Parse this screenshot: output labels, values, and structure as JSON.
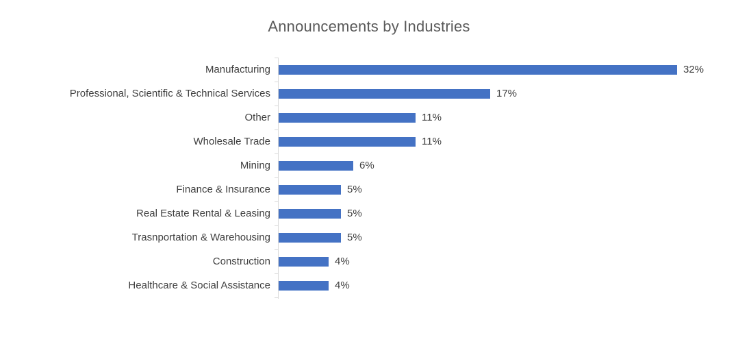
{
  "chart": {
    "title": "Announcements by Industries",
    "accent_color": "#4472C4",
    "axis_color": "#D9D9D9",
    "label_color": "#404040",
    "title_color": "#595959"
  },
  "chart_data": {
    "type": "bar",
    "orientation": "horizontal",
    "title": "Announcements by Industries",
    "categories": [
      "Manufacturing",
      "Professional, Scientific & Technical Services",
      "Other",
      "Wholesale Trade",
      "Mining",
      "Finance & Insurance",
      "Real Estate Rental & Leasing",
      "Trasnportation & Warehousing",
      "Construction",
      "Healthcare & Social Assistance"
    ],
    "values": [
      32,
      17,
      11,
      11,
      6,
      5,
      5,
      5,
      4,
      4
    ],
    "value_labels": [
      "32%",
      "17%",
      "11%",
      "11%",
      "6%",
      "5%",
      "5%",
      "5%",
      "4%",
      "4%"
    ],
    "xlabel": "",
    "ylabel": "",
    "xlim": [
      0,
      32
    ],
    "grid": false,
    "legend": false,
    "data_labels": "outside-end"
  }
}
